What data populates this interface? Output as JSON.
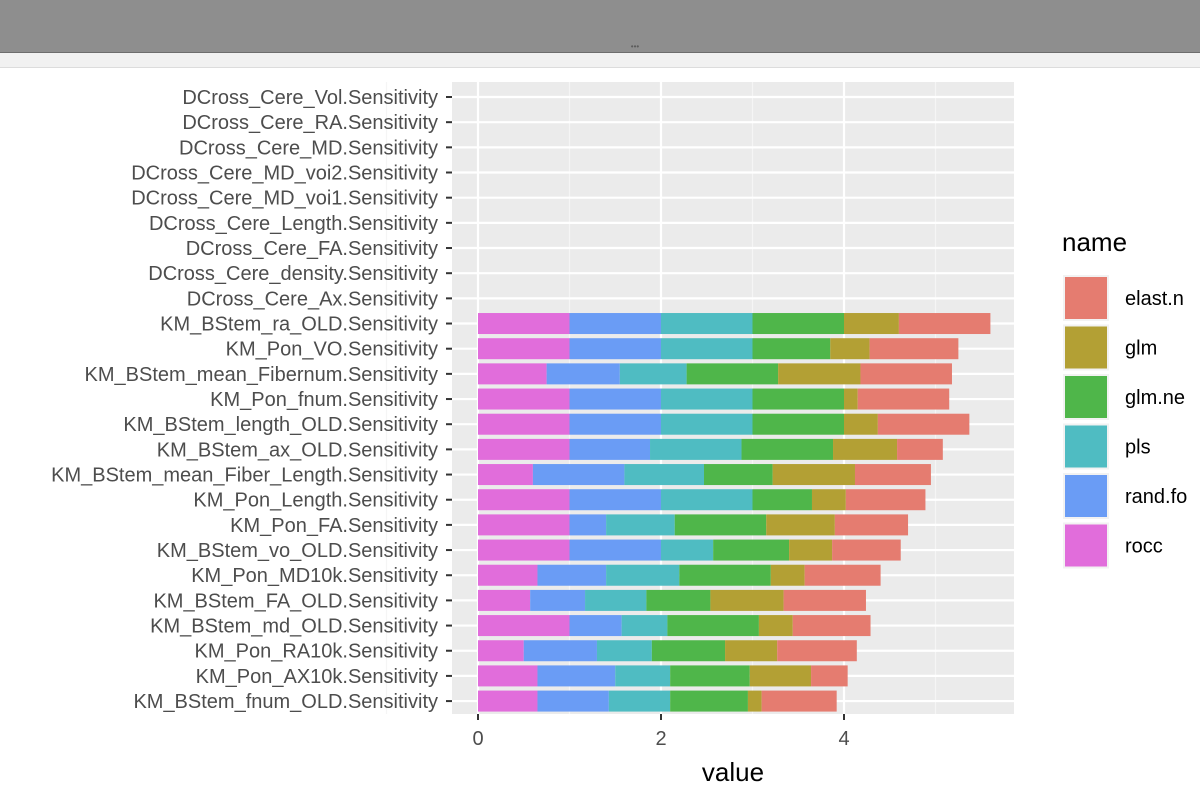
{
  "chart_data": {
    "type": "bar",
    "orientation": "horizontal",
    "stacked": true,
    "xlabel": "value",
    "ylabel": "",
    "xlim": [
      -0.25,
      5.85
    ],
    "xticks": [
      0,
      2,
      4
    ],
    "grid": true,
    "legend": {
      "title": "name",
      "placement": "right"
    },
    "categories": [
      "DCross_Cere_Vol.Sensitivity",
      "DCross_Cere_RA.Sensitivity",
      "DCross_Cere_MD.Sensitivity",
      "DCross_Cere_MD_voi2.Sensitivity",
      "DCross_Cere_MD_voi1.Sensitivity",
      "DCross_Cere_Length.Sensitivity",
      "DCross_Cere_FA.Sensitivity",
      "DCross_Cere_density.Sensitivity",
      "DCross_Cere_Ax.Sensitivity",
      "KM_BStem_ra_OLD.Sensitivity",
      "KM_Pon_VO.Sensitivity",
      "KM_BStem_mean_Fibernum.Sensitivity",
      "KM_Pon_fnum.Sensitivity",
      "KM_BStem_length_OLD.Sensitivity",
      "KM_BStem_ax_OLD.Sensitivity",
      "KM_BStem_mean_Fiber_Length.Sensitivity",
      "KM_Pon_Length.Sensitivity",
      "KM_Pon_FA.Sensitivity",
      "KM_BStem_vo_OLD.Sensitivity",
      "KM_Pon_MD10k.Sensitivity",
      "KM_BStem_FA_OLD.Sensitivity",
      "KM_BStem_md_OLD.Sensitivity",
      "KM_Pon_RA10k.Sensitivity",
      "KM_Pon_AX10k.Sensitivity",
      "KM_BStem_fnum_OLD.Sensitivity"
    ],
    "series": [
      {
        "name": "rocc",
        "color": "#e16ddb",
        "values": [
          0,
          0,
          0,
          0,
          0,
          0,
          0,
          0,
          0,
          1.0,
          1.0,
          0.75,
          1.0,
          1.0,
          1.0,
          0.6,
          1.0,
          1.0,
          1.0,
          0.65,
          0.57,
          1.0,
          0.5,
          0.65,
          0.65
        ]
      },
      {
        "name": "rand.fo",
        "color": "#6a9cf5",
        "values": [
          0,
          0,
          0,
          0,
          0,
          0,
          0,
          0,
          0,
          1.0,
          1.0,
          0.8,
          1.0,
          1.0,
          0.88,
          1.0,
          1.0,
          0.4,
          1.0,
          0.75,
          0.6,
          0.57,
          0.8,
          0.85,
          0.78
        ]
      },
      {
        "name": "pls",
        "color": "#4fbcc2",
        "values": [
          0,
          0,
          0,
          0,
          0,
          0,
          0,
          0,
          0,
          1.0,
          1.0,
          0.73,
          1.0,
          1.0,
          1.0,
          0.87,
          1.0,
          0.75,
          0.57,
          0.8,
          0.67,
          0.5,
          0.6,
          0.6,
          0.67
        ]
      },
      {
        "name": "glm.ne",
        "color": "#4fb64a",
        "values": [
          0,
          0,
          0,
          0,
          0,
          0,
          0,
          0,
          0,
          1.0,
          0.85,
          1.0,
          1.0,
          1.0,
          1.0,
          0.75,
          0.65,
          1.0,
          0.83,
          1.0,
          0.7,
          1.0,
          0.8,
          0.87,
          0.85
        ]
      },
      {
        "name": "glm",
        "color": "#b3a034",
        "values": [
          0,
          0,
          0,
          0,
          0,
          0,
          0,
          0,
          0,
          0.6,
          0.43,
          0.9,
          0.15,
          0.37,
          0.7,
          0.9,
          0.37,
          0.75,
          0.47,
          0.37,
          0.8,
          0.37,
          0.57,
          0.67,
          0.15
        ]
      },
      {
        "name": "elast.n",
        "color": "#e57c70",
        "values": [
          0,
          0,
          0,
          0,
          0,
          0,
          0,
          0,
          0,
          1.0,
          0.97,
          1.0,
          1.0,
          1.0,
          0.5,
          0.83,
          0.87,
          0.8,
          0.75,
          0.83,
          0.9,
          0.85,
          0.87,
          0.4,
          0.82
        ]
      }
    ]
  }
}
